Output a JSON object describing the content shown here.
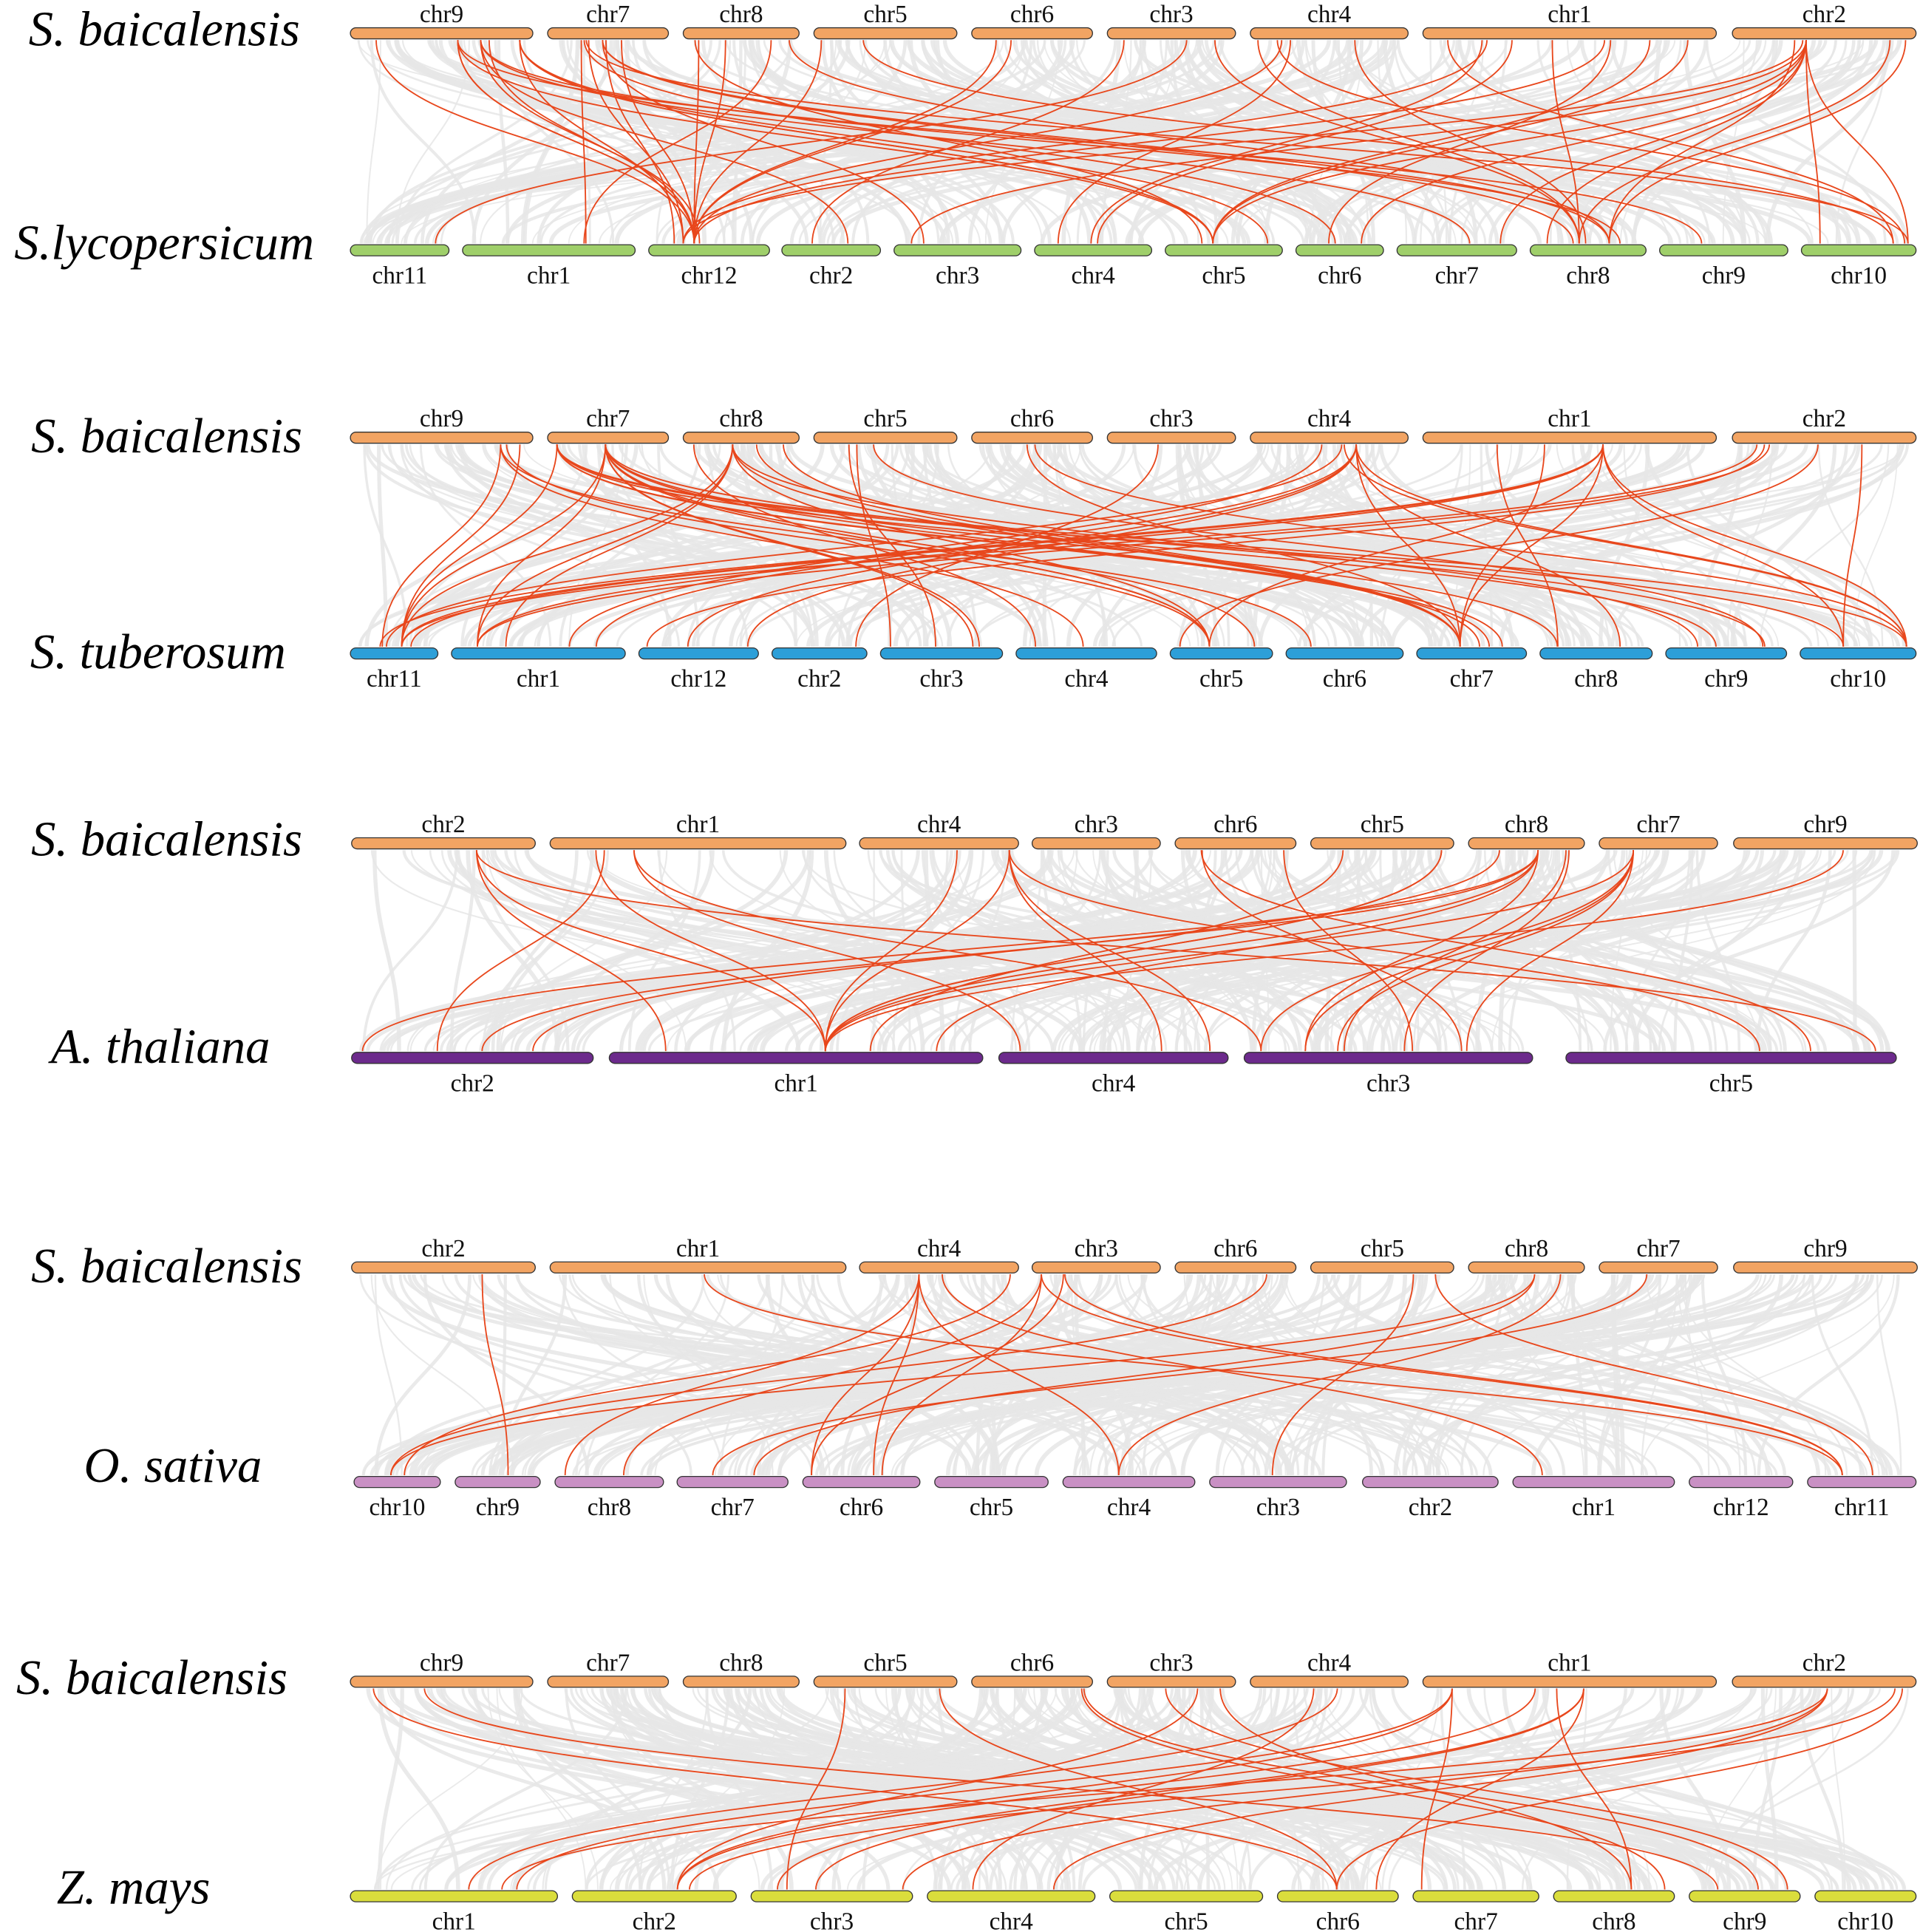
{
  "panels": [
    {
      "top": {
        "species": "S. baicalensis",
        "color": "#f2a463",
        "chromosomes": [
          "chr9",
          "chr7",
          "chr8",
          "chr5",
          "chr6",
          "chr3",
          "chr4",
          "chr1",
          "chr2"
        ]
      },
      "bottom": {
        "species": "S.lycopersicum",
        "color": "#9fcf6a",
        "chromosomes": [
          "chr11",
          "chr1",
          "chr12",
          "chr2",
          "chr3",
          "chr4",
          "chr5",
          "chr6",
          "chr7",
          "chr8",
          "chr9",
          "chr10"
        ]
      }
    },
    {
      "top": {
        "species": "S. baicalensis",
        "color": "#f2a463",
        "chromosomes": [
          "chr9",
          "chr7",
          "chr8",
          "chr5",
          "chr6",
          "chr3",
          "chr4",
          "chr1",
          "chr2"
        ]
      },
      "bottom": {
        "species": "S. tuberosum",
        "color": "#2d9fd8",
        "chromosomes": [
          "chr11",
          "chr1",
          "chr12",
          "chr2",
          "chr3",
          "chr4",
          "chr5",
          "chr6",
          "chr7",
          "chr8",
          "chr9",
          "chr10"
        ]
      }
    },
    {
      "top": {
        "species": "S. baicalensis",
        "color": "#f2a463",
        "chromosomes": [
          "chr2",
          "chr1",
          "chr4",
          "chr3",
          "chr6",
          "chr5",
          "chr8",
          "chr7",
          "chr9"
        ]
      },
      "bottom": {
        "species": "A. thaliana",
        "color": "#6c2a8c",
        "chromosomes": [
          "chr2",
          "chr1",
          "chr4",
          "chr3",
          "chr5"
        ]
      }
    },
    {
      "top": {
        "species": "S. baicalensis",
        "color": "#f2a463",
        "chromosomes": [
          "chr2",
          "chr1",
          "chr4",
          "chr3",
          "chr6",
          "chr5",
          "chr8",
          "chr7",
          "chr9"
        ]
      },
      "bottom": {
        "species": "O. sativa",
        "color": "#c990c4",
        "chromosomes": [
          "chr10",
          "chr9",
          "chr8",
          "chr7",
          "chr6",
          "chr5",
          "chr4",
          "chr3",
          "chr2",
          "chr1",
          "chr12",
          "chr11"
        ]
      }
    },
    {
      "top": {
        "species": "S. baicalensis",
        "color": "#f2a463",
        "chromosomes": [
          "chr9",
          "chr7",
          "chr8",
          "chr5",
          "chr6",
          "chr3",
          "chr4",
          "chr1",
          "chr2"
        ]
      },
      "bottom": {
        "species": "Z. mays",
        "color": "#dadd3c",
        "chromosomes": [
          "chr1",
          "chr2",
          "chr3",
          "chr4",
          "chr5",
          "chr6",
          "chr7",
          "chr8",
          "chr9",
          "chr10"
        ]
      }
    }
  ],
  "colors": {
    "background_links": "#e6e6e6",
    "highlight_links": "#e8471c"
  }
}
